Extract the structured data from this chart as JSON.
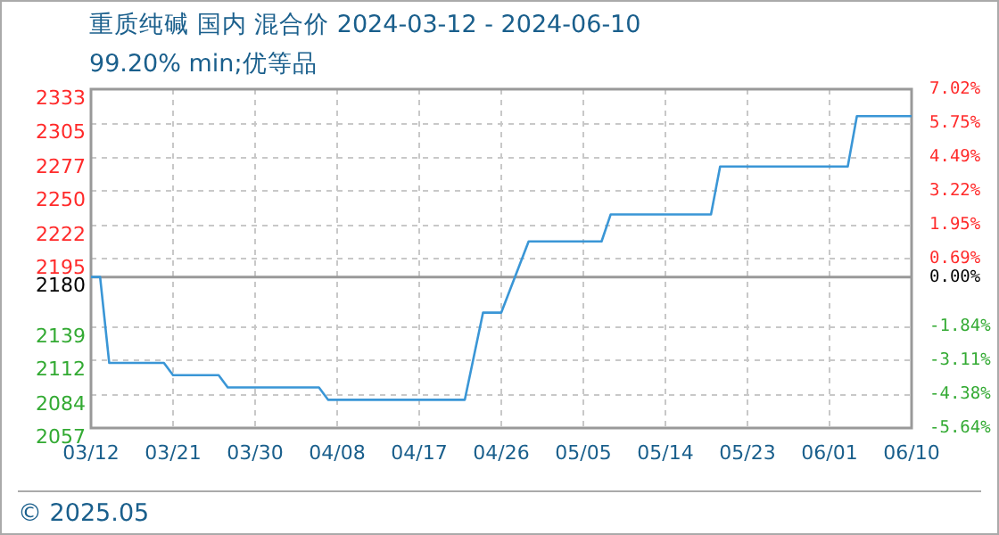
{
  "chart_data": {
    "type": "line",
    "title": "重质纯碱 国内 混合价 2024-03-12 - 2024-06-10",
    "subtitle": "99.20% min;优等品",
    "x": [
      "2024-03-12",
      "2024-03-13",
      "2024-03-14",
      "2024-03-20",
      "2024-03-21",
      "2024-03-26",
      "2024-03-27",
      "2024-04-06",
      "2024-04-07",
      "2024-04-22",
      "2024-04-24",
      "2024-04-26",
      "2024-04-29",
      "2024-05-07",
      "2024-05-08",
      "2024-05-19",
      "2024-05-20",
      "2024-06-03",
      "2024-06-04",
      "2024-06-10"
    ],
    "series": [
      {
        "color": "#3a96d6",
        "values": [
          2180,
          2180,
          2110,
          2110,
          2100,
          2100,
          2090,
          2090,
          2080,
          2080,
          2151,
          2151,
          2209,
          2209,
          2231,
          2231,
          2270,
          2270,
          2311,
          2311
        ]
      }
    ],
    "xlim": [
      "2024-03-12",
      "2024-06-10"
    ],
    "xticks": [
      {
        "value": "2024-03-12",
        "label": "03/12"
      },
      {
        "value": "2024-03-21",
        "label": "03/21"
      },
      {
        "value": "2024-03-30",
        "label": "03/30"
      },
      {
        "value": "2024-04-08",
        "label": "04/08"
      },
      {
        "value": "2024-04-17",
        "label": "04/17"
      },
      {
        "value": "2024-04-26",
        "label": "04/26"
      },
      {
        "value": "2024-05-05",
        "label": "05/05"
      },
      {
        "value": "2024-05-14",
        "label": "05/14"
      },
      {
        "value": "2024-05-23",
        "label": "05/23"
      },
      {
        "value": "2024-06-01",
        "label": "06/01"
      },
      {
        "value": "2024-06-10",
        "label": "06/10"
      }
    ],
    "ylim": [
      2057,
      2333
    ],
    "yticks": [
      2057,
      2084,
      2112,
      2139,
      2180,
      2195,
      2222,
      2250,
      2277,
      2305,
      2333
    ],
    "y2lim": [
      -5.64,
      7.02
    ],
    "y2ticks": [
      {
        "value": -5.64,
        "label": "-5.64%"
      },
      {
        "value": -4.38,
        "label": "-4.38%"
      },
      {
        "value": -3.11,
        "label": "-3.11%"
      },
      {
        "value": -1.84,
        "label": "-1.84%"
      },
      {
        "value": 0,
        "label": "0.00%"
      },
      {
        "value": 0.69,
        "label": "0.69%"
      },
      {
        "value": 1.95,
        "label": "1.95%"
      },
      {
        "value": 3.22,
        "label": "3.22%"
      },
      {
        "value": 4.49,
        "label": "4.49%"
      },
      {
        "value": 5.75,
        "label": "5.75%"
      },
      {
        "value": 7.02,
        "label": "7.02%"
      }
    ],
    "ref_lines": [
      {
        "axis": "y",
        "value": 2180,
        "color": "#999999"
      }
    ],
    "grid": true,
    "legend": false,
    "marker": "none",
    "line_style": "solid",
    "annotations": [
      "© 2025.05"
    ]
  }
}
